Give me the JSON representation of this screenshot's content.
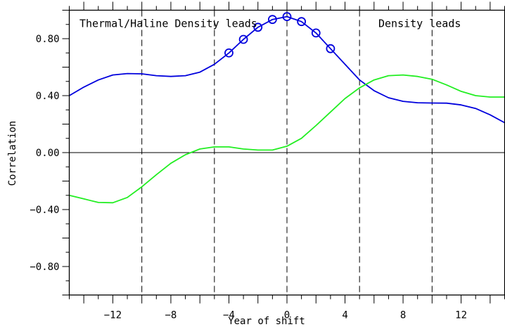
{
  "chart_data": {
    "type": "line",
    "xlabel": "Year of shift",
    "ylabel": "Correlation",
    "xlim": [
      -15,
      15
    ],
    "ylim": [
      -1.0,
      1.0
    ],
    "x_ticks": [
      {
        "value": -12,
        "label": "−12"
      },
      {
        "value": -8,
        "label": "−8"
      },
      {
        "value": -4,
        "label": "−4"
      },
      {
        "value": 0,
        "label": "0"
      },
      {
        "value": 4,
        "label": "4"
      },
      {
        "value": 8,
        "label": "8"
      },
      {
        "value": 12,
        "label": "12"
      }
    ],
    "y_ticks": [
      {
        "value": 0.8,
        "label": "0.80"
      },
      {
        "value": 0.4,
        "label": "0.40"
      },
      {
        "value": 0.0,
        "label": "0.00"
      },
      {
        "value": -0.4,
        "label": "−0.40"
      },
      {
        "value": -0.8,
        "label": "−0.80"
      }
    ],
    "x_minor_step": 1,
    "y_minor_step": 0.1,
    "zero_line": true,
    "vlines_dashed": [
      -10,
      -5,
      0,
      5,
      10
    ],
    "annotations": [
      {
        "text": "Thermal/Haline Density leads",
        "x": -14.3,
        "y": 0.905
      },
      {
        "text": "Density leads",
        "x": 6.3,
        "y": 0.905
      }
    ],
    "series": [
      {
        "color": "#0000dd",
        "x": [
          -15,
          -14,
          -13,
          -12,
          -11,
          -10,
          -9,
          -8,
          -7,
          -6,
          -5,
          -4,
          -3,
          -2,
          -1,
          0,
          1,
          2,
          3,
          4,
          5,
          6,
          7,
          8,
          9,
          10,
          11,
          12,
          13,
          14,
          15
        ],
        "values": [
          0.4,
          0.46,
          0.51,
          0.545,
          0.555,
          0.553,
          0.54,
          0.535,
          0.54,
          0.565,
          0.62,
          0.7,
          0.795,
          0.88,
          0.935,
          0.955,
          0.92,
          0.84,
          0.73,
          0.62,
          0.51,
          0.435,
          0.385,
          0.36,
          0.35,
          0.348,
          0.347,
          0.335,
          0.31,
          0.265,
          0.21
        ],
        "markers": [
          -4,
          -3,
          -2,
          -1,
          0,
          1,
          2,
          3
        ]
      },
      {
        "color": "#22ee22",
        "x": [
          -15,
          -14,
          -13,
          -12,
          -11,
          -10,
          -9,
          -8,
          -7,
          -6,
          -5,
          -4,
          -3,
          -2,
          -1,
          0,
          1,
          2,
          3,
          4,
          5,
          6,
          7,
          8,
          9,
          10,
          11,
          12,
          13,
          14,
          15
        ],
        "values": [
          -0.3,
          -0.325,
          -0.35,
          -0.352,
          -0.315,
          -0.24,
          -0.155,
          -0.075,
          -0.015,
          0.025,
          0.04,
          0.04,
          0.025,
          0.018,
          0.018,
          0.045,
          0.1,
          0.19,
          0.285,
          0.38,
          0.455,
          0.51,
          0.54,
          0.545,
          0.535,
          0.515,
          0.475,
          0.43,
          0.4,
          0.39,
          0.39
        ]
      }
    ]
  }
}
